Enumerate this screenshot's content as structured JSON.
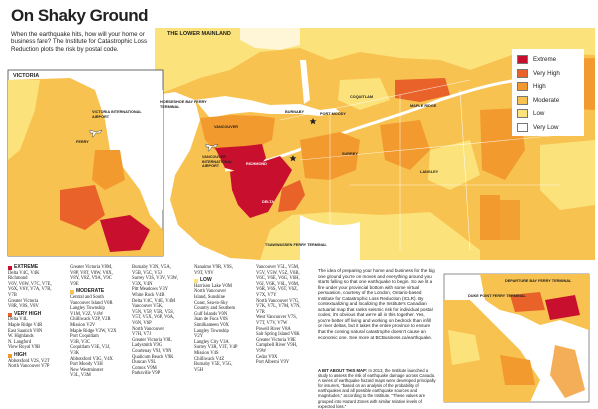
{
  "title": "On Shaky Ground",
  "intro": "When the earthquake hits, how will your home or business fare? The Institute for Catastrophic Loss Reduction plots the risk by postal code.",
  "regions": {
    "victoria": "VICTORIA",
    "lower_mainland": "THE LOWER MAINLAND"
  },
  "legend": [
    {
      "label": "Extreme",
      "color": "#c8102e"
    },
    {
      "label": "Very High",
      "color": "#e8622a"
    },
    {
      "label": "High",
      "color": "#f29a2e"
    },
    {
      "label": "Moderate",
      "color": "#f8c250"
    },
    {
      "label": "Low",
      "color": "#fbe27a"
    },
    {
      "label": "Very Low",
      "color": "#ffffff"
    }
  ],
  "places": {
    "victoria_airport": "VICTORIA INTERNATIONAL AIRPORT",
    "ferry": "FERRY",
    "vancouver_airport": "VANCOUVER INTERNATIONAL AIRPORT",
    "tsawwassen": "TSAWWASSEN FERRY TERMINAL",
    "port_moody": "PORT MOODY",
    "burnaby": "BURNABY",
    "coquitlam": "COQUITLAM",
    "surrey": "SURREY",
    "maple_ridge": "MAPLE RIDGE",
    "langley": "LANGLEY",
    "richmond": "RICHMOND",
    "delta": "DELTA",
    "vancouver": "VANCOUVER",
    "horseshoe_bay": "HORSESHOE BAY FERRY TERMINAL",
    "duke_point": "DUKE POINT FERRY TERMINAL",
    "departure_bay": "DEPARTURE BAY FERRY TERMINAL"
  },
  "categories": {
    "extreme": {
      "label": "EXTREME",
      "color": "#c8102e",
      "entries": [
        "Delta V4C, V4K",
        "Richmond",
        "V6V, V6W, V7C, V7E,",
        "V6X, V6Y, V7A, V7B,",
        "V7B",
        "Greater Victoria",
        "V8R, V8S, V8V"
      ]
    },
    "very_high": {
      "label": "VERY HIGH",
      "color": "#e8622a",
      "entries": [
        "Delta V4L",
        "Maple Ridge V4R",
        "East Saanich V8N",
        "W. Highlands",
        "N. Langford",
        "View Royal V9B"
      ]
    },
    "high": {
      "label": "HIGH",
      "color": "#f29a2e",
      "entries": [
        "Abbotsford V2S, V2T",
        "North Vancouver V7P"
      ]
    },
    "col2_extreme_cont": [
      "Greater Victoria V8M,",
      "V8P, V8T, V8W, V8X,",
      "V8Y, V8Z, V9A, V9C",
      "V9E"
    ],
    "moderate": {
      "label": "MODERATE",
      "color": "#f8c250",
      "entries": [
        "Central and South",
        "Vancouver Island V0R",
        "Langley Township",
        "V1M, V2Z, V4W",
        "Chilliwack V2P, V2R",
        "Mission V2V",
        "Maple Ridge V2W, V2X",
        "Port Coquitlam",
        "V3B, V3C",
        "Coquitlam V3E, V3J,",
        "V3K",
        "Abbotsford V3G, V4X",
        "Port Moody V3H",
        "New Westminster",
        "V3L, V3M"
      ]
    },
    "col3": [
      "Burnaby V3N, V5A,",
      "V5B, V5C, V5J",
      "Surrey V3S, V3V, V3W,",
      "V3X, V4N",
      "Pitt Meadows V3Y",
      "White Rock V4B",
      "Delta V4C, V4E, V4M",
      "Vancouver V5K,",
      "V5N, V5P, V5R, V5S,",
      "V5T, V5X, V6P, V6A,",
      "V6N, V6P",
      "North Vancouver",
      "V7H, V7J",
      "Greater Victoria V8L",
      "Ladysmith V9G",
      "Courtenay V9J, V9N",
      "Qualicum Beach V9K",
      "Duncan V9L",
      "Comox V9M",
      "Parksville V9P"
    ],
    "col4_moderate_cont": [
      "Nanaimo V9R, V9S,",
      "V9T, V9V"
    ],
    "low": {
      "label": "LOW",
      "color": "#fbe27a",
      "entries": [
        "Harrison Lake V0M",
        "North Vancouver",
        "Island, Sunshine",
        "Coast, Sea-to-Sky",
        "Country and Southern",
        "Gulf Islands V0N",
        "Juan de Fuca V0S",
        "Similkameen V0X",
        "Langley Township",
        "V2Y",
        "Langley City V3A",
        "Surrey V3R, V3T, V4P",
        "Mission V4S",
        "Chilliwack V4Z",
        "Burnaby V5E, V5G,",
        "V5H"
      ]
    },
    "col5": [
      "Vancouver V5L, V5M,",
      "V5V, V5W, V5Z, V6B,",
      "V6C, V6E, V6G, V6H,",
      "V6J, V6K, V6L, V6M,",
      "V6R, V6S, V6T, V6Z,",
      "V7X, V7Y",
      "North Vancouver V7G,",
      "V7K, V7L, V7M, V7N,",
      "V7R",
      "West Vancouver V7S,",
      "V7T, V7V, V7W",
      "Powell River V8A",
      "Salt Spring Island V8K",
      "Greater Victoria V8E",
      "Campbell River V9H,",
      "V9W",
      "Cedar V9X",
      "Port Alberni V9Y"
    ]
  },
  "body_text": "The idea of preparing your home and business for the big one ground you're on moves and everything around you starts falling so that one earthquake to begin. So we lit a fire under your provincial bottom with some virtual persuasion, courtesy of the London, Ontario-based Institute for Catastrophic Loss Reduction (ICLR). By contextualizing and localizing the Institute's Canadian actuarial map that ranks seismic risk for individual postal codes, it's obvious that we're all in this together. Yes, you're better off living and working on bedrock than infill or river deltas, but it takes the entire province to ensure that the coming natural catastrophe doesn't cause an economic one. See more at BCBusiness.ca/earthquake.",
  "note_lead": "A BIT ABOUT THIS MAP:",
  "note_text": "In 2013, the Institute launched a study to assess the risk of earthquake damage across Canada. A series of earthquake hazard maps were developed principally for insurers, \"based on an analysis of the probability of earthquakes and all possible earthquake sources and magnitudes,\" according to the Institute. \"These values are grouped into Hazard Zones with similar relative levels of expected loss.\""
}
